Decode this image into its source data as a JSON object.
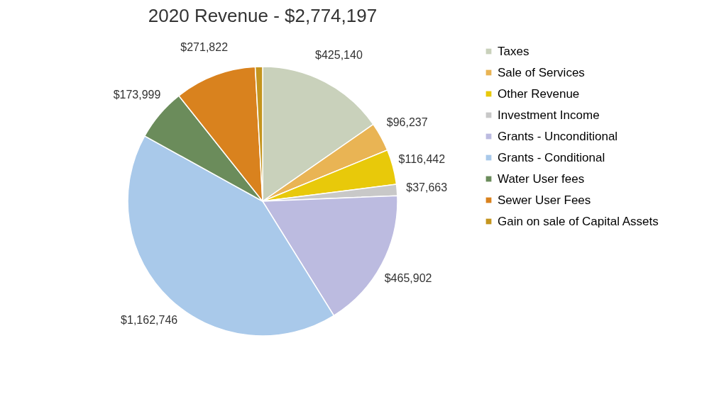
{
  "chart_data": {
    "type": "pie",
    "title": "2020 Revenue - $2,774,197",
    "categories": [
      "Taxes",
      "Sale of Services",
      "Other Revenue",
      "Investment Income",
      "Grants - Unconditional",
      "Grants - Conditional",
      "Water User fees",
      "Sewer User Fees",
      "Gain on sale of Capital Assets"
    ],
    "values": [
      425140,
      96237,
      116442,
      37663,
      465902,
      1162746,
      173999,
      271822,
      24246
    ],
    "value_labels": [
      "$425,140",
      "$96,237",
      "$116,442",
      "$37,663",
      "$465,902",
      "$1,162,746",
      "$173,999",
      "$271,822",
      null
    ],
    "colors": [
      "#c9d1bb",
      "#e9b454",
      "#e8c90a",
      "#c8c8c8",
      "#bcbbe0",
      "#a9c9ea",
      "#6b8c5b",
      "#d9821e",
      "#c4951f"
    ],
    "legend": "right"
  }
}
